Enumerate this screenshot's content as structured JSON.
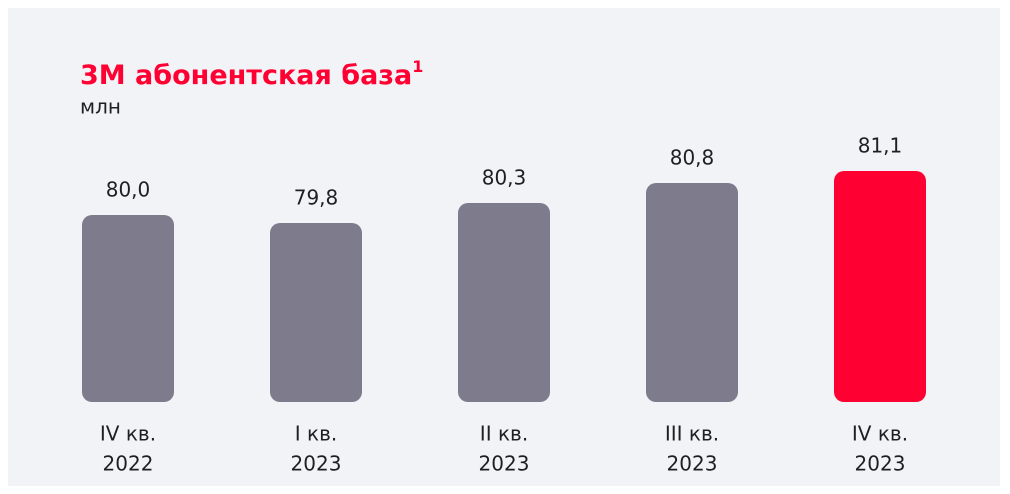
{
  "chart_data": {
    "type": "bar",
    "title": "3М абонентская база",
    "title_note": "1",
    "subtitle": "млн",
    "categories": [
      [
        "IV кв.",
        "2022"
      ],
      [
        "I кв.",
        "2023"
      ],
      [
        "II кв.",
        "2023"
      ],
      [
        "III кв.",
        "2023"
      ],
      [
        "IV кв.",
        "2023"
      ]
    ],
    "values": [
      80.0,
      79.8,
      80.3,
      80.8,
      81.1
    ],
    "value_labels": [
      "80,0",
      "79,8",
      "80,3",
      "80,8",
      "81,1"
    ],
    "colors": [
      "#7e7c8c",
      "#7e7c8c",
      "#7e7c8c",
      "#7e7c8c",
      "#ff0032"
    ]
  }
}
